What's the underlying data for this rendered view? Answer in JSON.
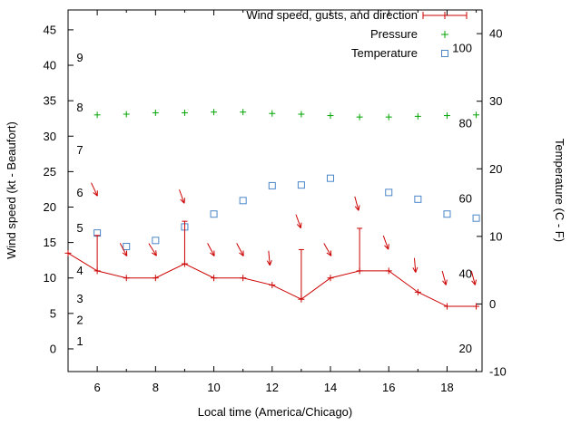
{
  "legend": {
    "position": "top-right-inside",
    "entries": [
      {
        "label": "Wind speed, gusts, and direction",
        "marker": "errorline-plus",
        "color": "#cc0000"
      },
      {
        "label": "Pressure",
        "marker": "plus",
        "color": "#00a400"
      },
      {
        "label": "Temperature",
        "marker": "open-square",
        "color": "#4a86c8"
      }
    ]
  },
  "axes": {
    "x": {
      "label": "Local time (America/Chicago)",
      "range": [
        5,
        19.2
      ],
      "major_ticks": [
        6,
        8,
        10,
        12,
        14,
        16,
        18
      ],
      "minor_ticks": [
        5,
        7,
        9,
        11,
        13,
        15,
        17,
        19
      ]
    },
    "y_left": {
      "label": "Wind speed (kt - Beaufort)",
      "range": [
        -3.2,
        47.8
      ],
      "ticks": [
        0,
        5,
        10,
        15,
        20,
        25,
        30,
        35,
        40,
        45
      ],
      "beaufort_labels": [
        {
          "b": "1",
          "kt": 1
        },
        {
          "b": "2",
          "kt": 4
        },
        {
          "b": "3",
          "kt": 7
        },
        {
          "b": "4",
          "kt": 11
        },
        {
          "b": "5",
          "kt": 17
        },
        {
          "b": "6",
          "kt": 22
        },
        {
          "b": "7",
          "kt": 28
        },
        {
          "b": "8",
          "kt": 34
        },
        {
          "b": "9",
          "kt": 41
        }
      ]
    },
    "y_right": {
      "label": "Temperature (C - F)",
      "range": [
        -10,
        43.5
      ],
      "ticks": [
        -10,
        0,
        10,
        20,
        30,
        40
      ],
      "fahrenheit_labels": [
        {
          "f": "20",
          "c": -6.67
        },
        {
          "f": "40",
          "c": 4.44
        },
        {
          "f": "60",
          "c": 15.56
        },
        {
          "f": "80",
          "c": 26.67
        },
        {
          "f": "100",
          "c": 37.78
        }
      ]
    }
  },
  "chart_data": {
    "type": "line",
    "title": "",
    "xlabel": "Local time (America/Chicago)",
    "ylabel_left": "Wind speed (kt - Beaufort)",
    "ylabel_right": "Temperature (C - F)",
    "grid": false,
    "series": [
      {
        "name": "wind_speed_kt",
        "axis": "left",
        "style": "line-plus-markers-with-gust-errorbars",
        "x": [
          5,
          6,
          7,
          8,
          9,
          10,
          11,
          12,
          13,
          14,
          15,
          16,
          17,
          18,
          19
        ],
        "speed": [
          13.5,
          11,
          10,
          10,
          12,
          10,
          10,
          9,
          7,
          10,
          11,
          11,
          8,
          6,
          6
        ],
        "gust": [
          13.5,
          16,
          10,
          10,
          18,
          10,
          10,
          9,
          14,
          10,
          17,
          11,
          8,
          6,
          6
        ]
      },
      {
        "name": "wind_direction_arrows",
        "axis": "left",
        "style": "arrows",
        "points": [
          {
            "x": 5.9,
            "kt": 22.5,
            "angle_deg": 65
          },
          {
            "x": 6.9,
            "kt": 14.0,
            "angle_deg": 62
          },
          {
            "x": 7.9,
            "kt": 14.0,
            "angle_deg": 58
          },
          {
            "x": 8.9,
            "kt": 21.5,
            "angle_deg": 70
          },
          {
            "x": 9.9,
            "kt": 14.0,
            "angle_deg": 62
          },
          {
            "x": 10.9,
            "kt": 14.0,
            "angle_deg": 62
          },
          {
            "x": 11.9,
            "kt": 12.8,
            "angle_deg": 85
          },
          {
            "x": 12.9,
            "kt": 18.0,
            "angle_deg": 70
          },
          {
            "x": 13.9,
            "kt": 14.0,
            "angle_deg": 60
          },
          {
            "x": 14.9,
            "kt": 20.5,
            "angle_deg": 75
          },
          {
            "x": 15.9,
            "kt": 15.0,
            "angle_deg": 70
          },
          {
            "x": 16.9,
            "kt": 11.8,
            "angle_deg": 85
          },
          {
            "x": 17.9,
            "kt": 10.0,
            "angle_deg": 75
          },
          {
            "x": 18.9,
            "kt": 10.0,
            "angle_deg": 75
          }
        ]
      },
      {
        "name": "pressure",
        "axis": "left-visual-position-no-scale",
        "style": "plus-points",
        "x": [
          6,
          7,
          8,
          9,
          10,
          11,
          12,
          13,
          14,
          15,
          16,
          17,
          18,
          19
        ],
        "y_left_units": [
          33.0,
          33.1,
          33.3,
          33.3,
          33.4,
          33.4,
          33.2,
          33.1,
          32.9,
          32.7,
          32.7,
          32.8,
          32.9,
          33.0
        ]
      },
      {
        "name": "temperature_c",
        "axis": "right",
        "style": "open-square-points",
        "x": [
          6,
          7,
          8,
          9,
          10,
          11,
          12,
          13,
          14,
          15,
          16,
          17,
          18,
          19
        ],
        "y": [
          10.5,
          8.5,
          9.4,
          11.4,
          13.3,
          15.3,
          17.5,
          17.6,
          18.6,
          null,
          16.5,
          15.5,
          13.3,
          12.7
        ]
      }
    ]
  },
  "colors": {
    "wind": "#cc0000",
    "pressure": "#00a400",
    "temperature": "#4a86c8",
    "axis": "#000000",
    "background": "#ffffff"
  }
}
